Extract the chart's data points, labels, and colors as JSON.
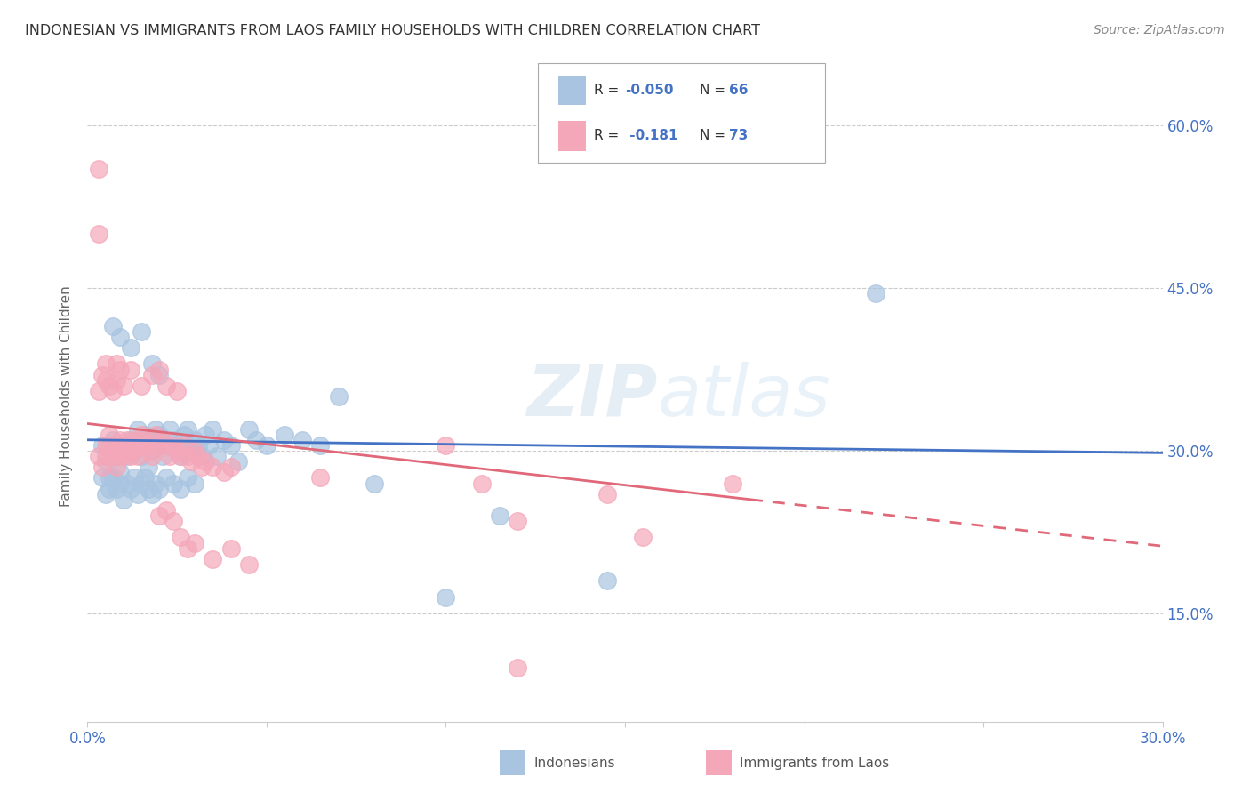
{
  "title": "INDONESIAN VS IMMIGRANTS FROM LAOS FAMILY HOUSEHOLDS WITH CHILDREN CORRELATION CHART",
  "source": "Source: ZipAtlas.com",
  "ylabel": "Family Households with Children",
  "xlim": [
    0.0,
    0.3
  ],
  "ylim": [
    0.05,
    0.65
  ],
  "color_indonesian": "#a8c4e0",
  "color_laos": "#f4a7b9",
  "trendline_indonesian_color": "#4472c4",
  "trendline_laos_color": "#e06878",
  "watermark": "ZIPatlas",
  "trendline_ind_y0": 0.31,
  "trendline_ind_y1": 0.298,
  "trendline_laos_solid_x0": 0.0,
  "trendline_laos_solid_x1": 0.185,
  "trendline_laos_y0": 0.325,
  "trendline_laos_y1": 0.255,
  "trendline_laos_dash_x0": 0.185,
  "trendline_laos_dash_x1": 0.3,
  "trendline_laos_dash_y0": 0.255,
  "trendline_laos_dash_y1": 0.212,
  "scatter_indonesian": [
    [
      0.004,
      0.305
    ],
    [
      0.005,
      0.29
    ],
    [
      0.006,
      0.275
    ],
    [
      0.007,
      0.31
    ],
    [
      0.008,
      0.295
    ],
    [
      0.009,
      0.28
    ],
    [
      0.01,
      0.305
    ],
    [
      0.011,
      0.295
    ],
    [
      0.012,
      0.31
    ],
    [
      0.013,
      0.3
    ],
    [
      0.014,
      0.32
    ],
    [
      0.015,
      0.295
    ],
    [
      0.016,
      0.315
    ],
    [
      0.017,
      0.285
    ],
    [
      0.018,
      0.3
    ],
    [
      0.019,
      0.32
    ],
    [
      0.02,
      0.315
    ],
    [
      0.021,
      0.295
    ],
    [
      0.022,
      0.305
    ],
    [
      0.023,
      0.32
    ],
    [
      0.024,
      0.31
    ],
    [
      0.025,
      0.305
    ],
    [
      0.026,
      0.295
    ],
    [
      0.027,
      0.315
    ],
    [
      0.028,
      0.32
    ],
    [
      0.029,
      0.3
    ],
    [
      0.03,
      0.31
    ],
    [
      0.031,
      0.305
    ],
    [
      0.032,
      0.295
    ],
    [
      0.033,
      0.315
    ],
    [
      0.034,
      0.305
    ],
    [
      0.035,
      0.32
    ],
    [
      0.036,
      0.295
    ],
    [
      0.038,
      0.31
    ],
    [
      0.04,
      0.305
    ],
    [
      0.042,
      0.29
    ],
    [
      0.045,
      0.32
    ],
    [
      0.047,
      0.31
    ],
    [
      0.05,
      0.305
    ],
    [
      0.055,
      0.315
    ],
    [
      0.06,
      0.31
    ],
    [
      0.065,
      0.305
    ],
    [
      0.004,
      0.275
    ],
    [
      0.005,
      0.26
    ],
    [
      0.006,
      0.265
    ],
    [
      0.007,
      0.275
    ],
    [
      0.008,
      0.265
    ],
    [
      0.009,
      0.27
    ],
    [
      0.01,
      0.255
    ],
    [
      0.011,
      0.27
    ],
    [
      0.012,
      0.265
    ],
    [
      0.013,
      0.275
    ],
    [
      0.014,
      0.26
    ],
    [
      0.015,
      0.27
    ],
    [
      0.016,
      0.275
    ],
    [
      0.017,
      0.265
    ],
    [
      0.018,
      0.26
    ],
    [
      0.019,
      0.27
    ],
    [
      0.02,
      0.265
    ],
    [
      0.022,
      0.275
    ],
    [
      0.024,
      0.27
    ],
    [
      0.026,
      0.265
    ],
    [
      0.028,
      0.275
    ],
    [
      0.03,
      0.27
    ],
    [
      0.007,
      0.415
    ],
    [
      0.009,
      0.405
    ],
    [
      0.012,
      0.395
    ],
    [
      0.015,
      0.41
    ],
    [
      0.018,
      0.38
    ],
    [
      0.02,
      0.37
    ],
    [
      0.07,
      0.35
    ],
    [
      0.08,
      0.27
    ],
    [
      0.1,
      0.165
    ],
    [
      0.115,
      0.24
    ],
    [
      0.145,
      0.18
    ],
    [
      0.22,
      0.445
    ]
  ],
  "scatter_laos": [
    [
      0.003,
      0.295
    ],
    [
      0.004,
      0.285
    ],
    [
      0.005,
      0.305
    ],
    [
      0.005,
      0.295
    ],
    [
      0.006,
      0.315
    ],
    [
      0.006,
      0.305
    ],
    [
      0.007,
      0.295
    ],
    [
      0.007,
      0.3
    ],
    [
      0.008,
      0.285
    ],
    [
      0.008,
      0.295
    ],
    [
      0.009,
      0.3
    ],
    [
      0.009,
      0.31
    ],
    [
      0.01,
      0.295
    ],
    [
      0.01,
      0.305
    ],
    [
      0.011,
      0.3
    ],
    [
      0.011,
      0.31
    ],
    [
      0.012,
      0.305
    ],
    [
      0.012,
      0.295
    ],
    [
      0.013,
      0.31
    ],
    [
      0.013,
      0.3
    ],
    [
      0.014,
      0.305
    ],
    [
      0.014,
      0.295
    ],
    [
      0.015,
      0.315
    ],
    [
      0.015,
      0.305
    ],
    [
      0.016,
      0.31
    ],
    [
      0.017,
      0.305
    ],
    [
      0.018,
      0.3
    ],
    [
      0.018,
      0.295
    ],
    [
      0.019,
      0.315
    ],
    [
      0.02,
      0.305
    ],
    [
      0.021,
      0.31
    ],
    [
      0.022,
      0.305
    ],
    [
      0.023,
      0.295
    ],
    [
      0.024,
      0.305
    ],
    [
      0.025,
      0.3
    ],
    [
      0.026,
      0.295
    ],
    [
      0.027,
      0.305
    ],
    [
      0.028,
      0.295
    ],
    [
      0.029,
      0.29
    ],
    [
      0.03,
      0.3
    ],
    [
      0.031,
      0.295
    ],
    [
      0.032,
      0.285
    ],
    [
      0.033,
      0.29
    ],
    [
      0.035,
      0.285
    ],
    [
      0.038,
      0.28
    ],
    [
      0.04,
      0.285
    ],
    [
      0.003,
      0.355
    ],
    [
      0.004,
      0.37
    ],
    [
      0.005,
      0.365
    ],
    [
      0.005,
      0.38
    ],
    [
      0.006,
      0.36
    ],
    [
      0.007,
      0.355
    ],
    [
      0.008,
      0.365
    ],
    [
      0.008,
      0.38
    ],
    [
      0.009,
      0.375
    ],
    [
      0.01,
      0.36
    ],
    [
      0.012,
      0.375
    ],
    [
      0.015,
      0.36
    ],
    [
      0.018,
      0.37
    ],
    [
      0.02,
      0.375
    ],
    [
      0.022,
      0.36
    ],
    [
      0.025,
      0.355
    ],
    [
      0.003,
      0.56
    ],
    [
      0.003,
      0.5
    ],
    [
      0.02,
      0.24
    ],
    [
      0.022,
      0.245
    ],
    [
      0.024,
      0.235
    ],
    [
      0.026,
      0.22
    ],
    [
      0.028,
      0.21
    ],
    [
      0.03,
      0.215
    ],
    [
      0.035,
      0.2
    ],
    [
      0.04,
      0.21
    ],
    [
      0.045,
      0.195
    ],
    [
      0.065,
      0.275
    ],
    [
      0.1,
      0.305
    ],
    [
      0.11,
      0.27
    ],
    [
      0.12,
      0.235
    ],
    [
      0.145,
      0.26
    ],
    [
      0.12,
      0.1
    ],
    [
      0.155,
      0.22
    ],
    [
      0.18,
      0.27
    ]
  ]
}
